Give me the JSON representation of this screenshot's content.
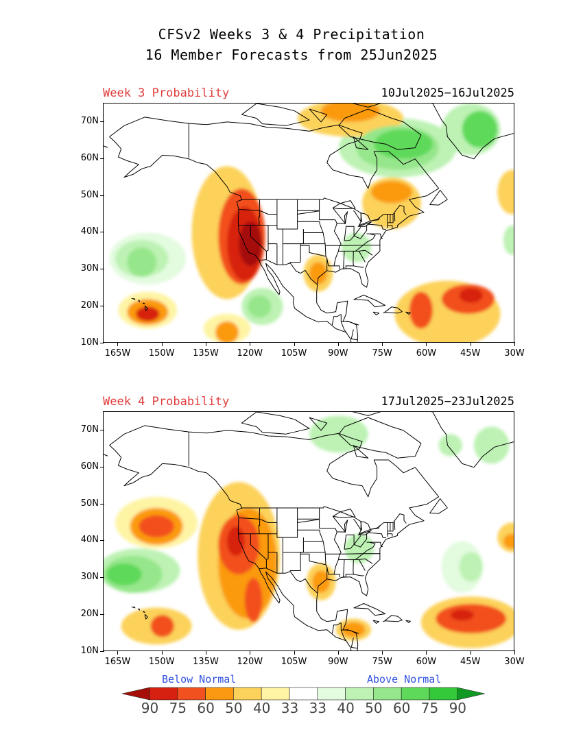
{
  "title": {
    "line1": "CFSv2 Weeks 3 & 4 Precipitation",
    "line2": "16 Member Forecasts from 25Jun2025"
  },
  "panels": [
    {
      "label": "Week 3 Probability",
      "dates": "10Jul2025−16Jul2025",
      "blobs": [
        {
          "cat": "b90",
          "lon": -120,
          "lat": 37,
          "rx": 4,
          "ry": 6
        },
        {
          "cat": "b75",
          "lon": -122,
          "lat": 37,
          "rx": 6,
          "ry": 10
        },
        {
          "cat": "b60",
          "lon": -123,
          "lat": 39,
          "rx": 8,
          "ry": 13
        },
        {
          "cat": "b40",
          "lon": -128,
          "lat": 40,
          "rx": 12,
          "ry": 18
        },
        {
          "cat": "b75",
          "lon": -155,
          "lat": 18,
          "rx": 4,
          "ry": 2
        },
        {
          "cat": "b50",
          "lon": -155,
          "lat": 18.5,
          "rx": 7,
          "ry": 3.5
        },
        {
          "cat": "b33",
          "lon": -155,
          "lat": 19,
          "rx": 10,
          "ry": 5
        },
        {
          "cat": "b50",
          "lon": -128,
          "lat": 13,
          "rx": 4,
          "ry": 3
        },
        {
          "cat": "b33",
          "lon": -128,
          "lat": 14,
          "rx": 8,
          "ry": 4
        },
        {
          "cat": "b50",
          "lon": -97,
          "lat": 29,
          "rx": 3,
          "ry": 3
        },
        {
          "cat": "b40",
          "lon": -97,
          "lat": 29,
          "rx": 5,
          "ry": 5
        },
        {
          "cat": "b60",
          "lon": -62,
          "lat": 19,
          "rx": 4,
          "ry": 5
        },
        {
          "cat": "b75",
          "lon": -45,
          "lat": 23,
          "rx": 4,
          "ry": 2
        },
        {
          "cat": "b60",
          "lon": -46,
          "lat": 22,
          "rx": 9,
          "ry": 4
        },
        {
          "cat": "b40",
          "lon": -53,
          "lat": 18,
          "rx": 18,
          "ry": 9
        },
        {
          "cat": "b50",
          "lon": -86,
          "lat": 73,
          "rx": 10,
          "ry": 3
        },
        {
          "cat": "b40",
          "lon": -86,
          "lat": 71,
          "rx": 18,
          "ry": 5
        },
        {
          "cat": "b50",
          "lon": -72,
          "lat": 51,
          "rx": 7,
          "ry": 3
        },
        {
          "cat": "b40",
          "lon": -72,
          "lat": 48,
          "rx": 10,
          "ry": 7
        },
        {
          "cat": "b40",
          "lon": -31,
          "lat": 51,
          "rx": 5,
          "ry": 6
        },
        {
          "cat": "a50",
          "lon": -157,
          "lat": 32,
          "rx": 5,
          "ry": 4
        },
        {
          "cat": "a40",
          "lon": -157,
          "lat": 33,
          "rx": 9,
          "ry": 5
        },
        {
          "cat": "a33",
          "lon": -155,
          "lat": 33,
          "rx": 13,
          "ry": 7
        },
        {
          "cat": "a50",
          "lon": -117,
          "lat": 20,
          "rx": 4,
          "ry": 3
        },
        {
          "cat": "a40",
          "lon": -116,
          "lat": 20,
          "rx": 7,
          "ry": 5
        },
        {
          "cat": "a40",
          "lon": -84,
          "lat": 36,
          "rx": 5,
          "ry": 4
        },
        {
          "cat": "a60",
          "lon": -68,
          "lat": 64,
          "rx": 10,
          "ry": 4
        },
        {
          "cat": "a50",
          "lon": -70,
          "lat": 63,
          "rx": 14,
          "ry": 6
        },
        {
          "cat": "a40",
          "lon": -70,
          "lat": 63,
          "rx": 20,
          "ry": 8
        },
        {
          "cat": "a60",
          "lon": -42,
          "lat": 68,
          "rx": 6,
          "ry": 5
        },
        {
          "cat": "a40",
          "lon": -45,
          "lat": 68,
          "rx": 10,
          "ry": 7
        },
        {
          "cat": "a40",
          "lon": -31,
          "lat": 38,
          "rx": 3,
          "ry": 4
        }
      ]
    },
    {
      "label": "Week 4 Probability",
      "dates": "17Jul2025−23Jul2025",
      "blobs": [
        {
          "cat": "b75",
          "lon": -125,
          "lat": 40,
          "rx": 3,
          "ry": 4
        },
        {
          "cat": "b60",
          "lon": -124,
          "lat": 39,
          "rx": 7,
          "ry": 8
        },
        {
          "cat": "b60",
          "lon": -119,
          "lat": 24,
          "rx": 3,
          "ry": 6
        },
        {
          "cat": "b50",
          "lon": -121,
          "lat": 34,
          "rx": 10,
          "ry": 15
        },
        {
          "cat": "b40",
          "lon": -124,
          "lat": 36,
          "rx": 14,
          "ry": 20
        },
        {
          "cat": "b60",
          "lon": -152,
          "lat": 44,
          "rx": 6,
          "ry": 3
        },
        {
          "cat": "b50",
          "lon": -152,
          "lat": 44,
          "rx": 9,
          "ry": 5
        },
        {
          "cat": "b33",
          "lon": -152,
          "lat": 45,
          "rx": 14,
          "ry": 7
        },
        {
          "cat": "b60",
          "lon": -150,
          "lat": 17,
          "rx": 4,
          "ry": 3
        },
        {
          "cat": "b40",
          "lon": -152,
          "lat": 17,
          "rx": 12,
          "ry": 5
        },
        {
          "cat": "b75",
          "lon": -48,
          "lat": 20,
          "rx": 4,
          "ry": 1.5
        },
        {
          "cat": "b60",
          "lon": -45,
          "lat": 19,
          "rx": 12,
          "ry": 4
        },
        {
          "cat": "b40",
          "lon": -45,
          "lat": 18,
          "rx": 17,
          "ry": 7
        },
        {
          "cat": "b50",
          "lon": -85,
          "lat": 16,
          "rx": 4,
          "ry": 2
        },
        {
          "cat": "b40",
          "lon": -85,
          "lat": 16,
          "rx": 6,
          "ry": 3
        },
        {
          "cat": "b50",
          "lon": -96,
          "lat": 29,
          "rx": 3,
          "ry": 3
        },
        {
          "cat": "b40",
          "lon": -96,
          "lat": 29,
          "rx": 5,
          "ry": 5
        },
        {
          "cat": "b50",
          "lon": -31,
          "lat": 40,
          "rx": 3,
          "ry": 2
        },
        {
          "cat": "b40",
          "lon": -31,
          "lat": 41,
          "rx": 5,
          "ry": 4
        },
        {
          "cat": "a60",
          "lon": -163,
          "lat": 31,
          "rx": 6,
          "ry": 3
        },
        {
          "cat": "a50",
          "lon": -160,
          "lat": 31,
          "rx": 10,
          "ry": 5
        },
        {
          "cat": "a40",
          "lon": -158,
          "lat": 32,
          "rx": 14,
          "ry": 6
        },
        {
          "cat": "a40",
          "lon": -83,
          "lat": 38,
          "rx": 5,
          "ry": 4
        },
        {
          "cat": "a40",
          "lon": -45,
          "lat": 33,
          "rx": 4,
          "ry": 4
        },
        {
          "cat": "a33",
          "lon": -48,
          "lat": 33,
          "rx": 7,
          "ry": 7
        },
        {
          "cat": "a40",
          "lon": -90,
          "lat": 69,
          "rx": 10,
          "ry": 5
        },
        {
          "cat": "a40",
          "lon": -52,
          "lat": 66,
          "rx": 4,
          "ry": 3
        },
        {
          "cat": "a40",
          "lon": -38,
          "lat": 66,
          "rx": 6,
          "ry": 5
        }
      ]
    }
  ],
  "axes": {
    "lat_labels": [
      "10N",
      "20N",
      "30N",
      "40N",
      "50N",
      "60N",
      "70N"
    ],
    "lat_values": [
      10,
      20,
      30,
      40,
      50,
      60,
      70
    ],
    "lon_labels": [
      "165W",
      "150W",
      "135W",
      "120W",
      "105W",
      "90W",
      "75W",
      "60W",
      "45W",
      "30W"
    ],
    "lon_values": [
      -165,
      -150,
      -135,
      -120,
      -105,
      -90,
      -75,
      -60,
      -45,
      -30
    ],
    "lon_range": [
      -170,
      -30
    ],
    "lat_range": [
      10,
      75
    ]
  },
  "legend": {
    "below_label": "Below Normal",
    "above_label": "Above Normal",
    "numbers": [
      "90",
      "75",
      "60",
      "50",
      "40",
      "33",
      "33",
      "40",
      "50",
      "60",
      "75",
      "90"
    ],
    "colors": {
      "b90": "#a50f08",
      "b75": "#d7200f",
      "b60": "#f2501e",
      "b50": "#fb9a10",
      "b40": "#fcd25a",
      "b33": "#fef4a4",
      "neutral": "#ffffff",
      "a33": "#e3fbdf",
      "a40": "#bdf2b4",
      "a50": "#96e68b",
      "a60": "#5fd95a",
      "a75": "#33c93a",
      "a90": "#119a22"
    },
    "bar_order": [
      "b90",
      "b75",
      "b60",
      "b50",
      "b40",
      "b33",
      "neutral",
      "a33",
      "a40",
      "a50",
      "a60",
      "a75",
      "a90"
    ]
  }
}
